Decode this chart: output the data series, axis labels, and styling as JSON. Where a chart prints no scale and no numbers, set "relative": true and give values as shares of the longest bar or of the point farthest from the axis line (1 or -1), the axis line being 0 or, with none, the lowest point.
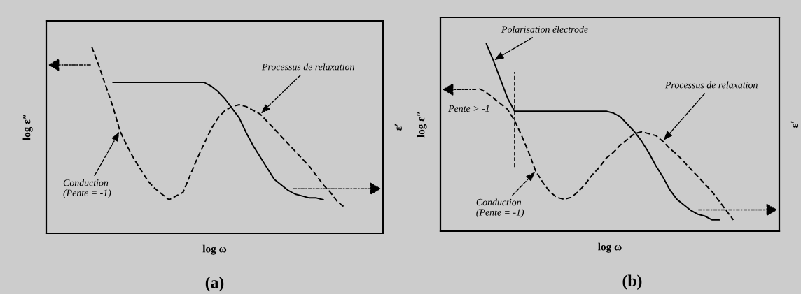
{
  "chart_data": [
    {
      "type": "line",
      "title": "(a)",
      "xlabel": "log ω",
      "ylabel": "log ε″",
      "y2label": "ε′",
      "relative": true,
      "tick_labels": false,
      "categories": [
        null,
        null,
        null,
        null,
        null,
        null,
        null,
        null,
        null,
        null,
        null,
        null,
        null,
        null,
        null,
        null,
        null,
        null,
        null,
        null,
        null,
        null,
        null,
        null,
        null,
        null,
        null,
        null,
        null,
        null,
        null,
        null,
        null,
        null,
        null,
        null,
        null,
        null,
        null,
        null,
        null,
        null,
        null,
        null,
        null,
        null,
        null,
        null
      ],
      "series": [
        {
          "color": "#000000",
          "line_style": "solid",
          "values": [
            null,
            null,
            null,
            null,
            null,
            null,
            null,
            null,
            null,
            0.81,
            0.81,
            0.81,
            0.81,
            0.81,
            0.81,
            0.81,
            0.81,
            0.81,
            0.81,
            0.81,
            0.81,
            0.81,
            0.81,
            0.79,
            0.76,
            0.72,
            0.67,
            0.62,
            0.54,
            0.47,
            0.41,
            0.35,
            0.29,
            0.26,
            0.23,
            0.21,
            0.2,
            0.19,
            0.19,
            0.18,
            null,
            null,
            null,
            null,
            null,
            null,
            null,
            null
          ]
        },
        {
          "color": "#000000",
          "line_style": "dashed",
          "values": [
            null,
            null,
            null,
            null,
            null,
            null,
            1.0,
            0.9,
            0.79,
            0.68,
            0.55,
            0.47,
            0.4,
            0.34,
            0.28,
            0.24,
            0.21,
            0.18,
            0.2,
            0.22,
            0.31,
            0.4,
            0.48,
            0.56,
            0.62,
            0.66,
            0.68,
            0.69,
            0.68,
            0.66,
            0.64,
            0.6,
            0.56,
            0.52,
            0.48,
            0.44,
            0.4,
            0.36,
            0.31,
            0.26,
            0.22,
            0.17,
            0.14,
            null,
            null,
            null,
            null,
            null
          ]
        }
      ],
      "annotations": [
        "Processus de relaxation",
        "Conduction\n(Pente = -1)"
      ]
    },
    {
      "type": "line",
      "title": "(b)",
      "xlabel": "log ω",
      "ylabel": "log ε″",
      "y2label": "ε′",
      "relative": true,
      "tick_labels": false,
      "categories": [
        null,
        null,
        null,
        null,
        null,
        null,
        null,
        null,
        null,
        null,
        null,
        null,
        null,
        null,
        null,
        null,
        null,
        null,
        null,
        null,
        null,
        null,
        null,
        null,
        null,
        null,
        null,
        null,
        null,
        null,
        null,
        null,
        null,
        null,
        null,
        null,
        null,
        null,
        null,
        null,
        null,
        null,
        null,
        null,
        null,
        null,
        null,
        null
      ],
      "series": [
        {
          "color": "#000000",
          "line_style": "solid",
          "values": [
            null,
            null,
            null,
            null,
            null,
            null,
            1.0,
            0.91,
            0.81,
            0.71,
            0.64,
            0.64,
            0.64,
            0.64,
            0.64,
            0.64,
            0.64,
            0.64,
            0.64,
            0.64,
            0.64,
            0.64,
            0.64,
            0.64,
            0.63,
            0.61,
            0.57,
            0.53,
            0.48,
            0.42,
            0.35,
            0.29,
            0.22,
            0.17,
            0.14,
            0.11,
            0.09,
            0.08,
            0.06,
            0.06,
            null,
            null,
            null,
            null,
            null,
            null,
            null,
            null
          ]
        },
        {
          "color": "#000000",
          "line_style": "dashed",
          "values": [
            null,
            null,
            null,
            null,
            null,
            0.76,
            0.74,
            0.71,
            0.68,
            0.65,
            0.59,
            0.51,
            0.42,
            0.32,
            0.26,
            0.21,
            0.18,
            0.17,
            0.18,
            0.21,
            0.25,
            0.3,
            0.34,
            0.39,
            0.42,
            0.46,
            0.49,
            0.52,
            0.53,
            0.52,
            0.51,
            0.48,
            0.44,
            0.41,
            0.37,
            0.33,
            0.29,
            0.25,
            0.21,
            0.16,
            0.11,
            0.06,
            null,
            null,
            null,
            null,
            null,
            null
          ]
        }
      ],
      "annotations": [
        "Polarisation électrode",
        "Pente > -1",
        "Processus de relaxation",
        "Conduction\n(Pente = -1)"
      ]
    }
  ]
}
